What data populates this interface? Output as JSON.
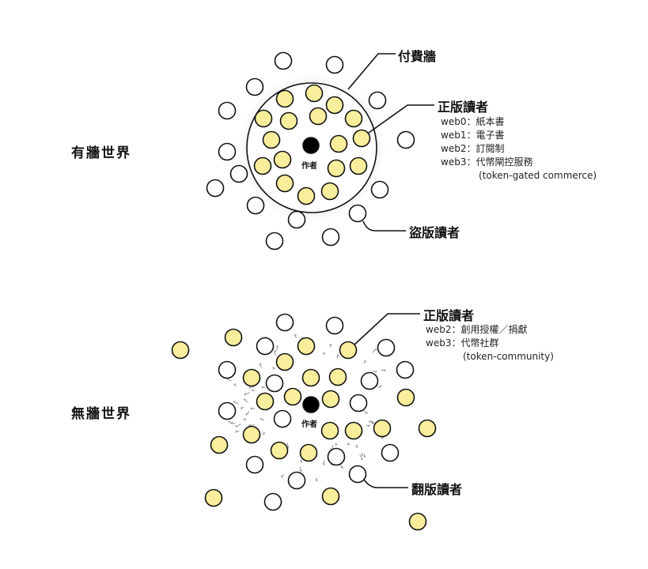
{
  "colors": {
    "licensed_reader": "#f9ee9c",
    "pirate_reader": "#ffffff",
    "author": "#000000",
    "stroke": "#111111",
    "flow_arrows": "#888888"
  },
  "walled_world": {
    "title": "有牆世界",
    "author_label": "作者",
    "paywall_label": "付費牆",
    "licensed": {
      "title": "正版讀者",
      "lines": [
        "web0：紙本書",
        "web1：電子書",
        "web2：訂閱制",
        "web3：代幣閘控服務",
        "(token-gated commerce)"
      ]
    },
    "pirate_label": "盜版讀者"
  },
  "wallless_world": {
    "title": "無牆世界",
    "author_label": "作者",
    "licensed": {
      "title": "正版讀者",
      "lines": [
        "web2：創用授權／捐獻",
        "web3：代幣社群",
        "(token-community)"
      ]
    },
    "copy_label": "翻版讀者"
  }
}
